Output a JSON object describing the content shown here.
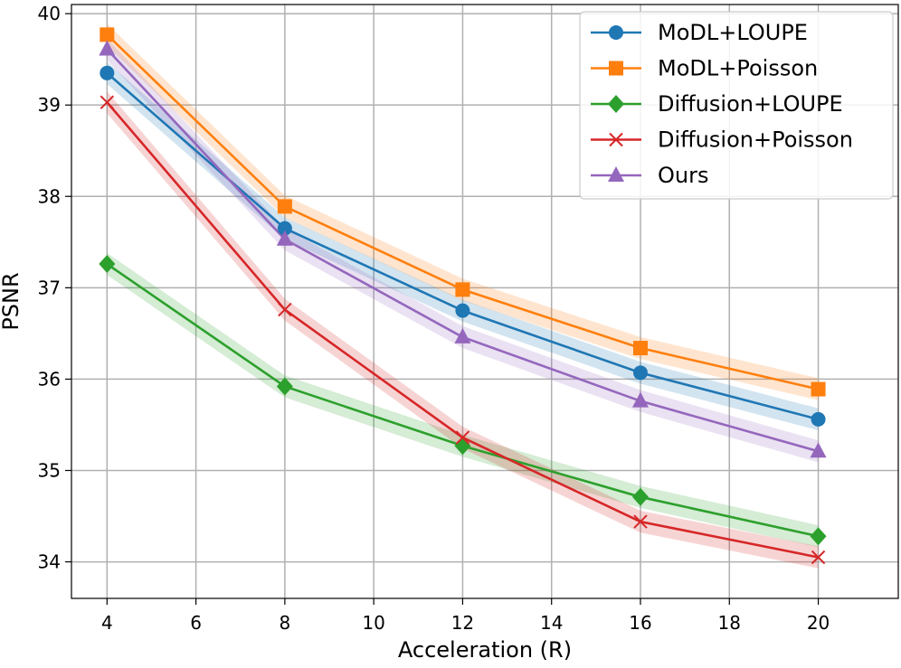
{
  "chart_data": {
    "type": "line",
    "title": "",
    "xlabel": "Acceleration (R)",
    "ylabel": "PSNR",
    "xlim": [
      3.2,
      21.8
    ],
    "ylim": [
      33.6,
      40.1
    ],
    "xticks": [
      4,
      6,
      8,
      10,
      12,
      14,
      16,
      18,
      20
    ],
    "yticks": [
      34,
      35,
      36,
      37,
      38,
      39,
      40
    ],
    "grid": true,
    "legend_position": "top-right",
    "x": [
      4,
      8,
      12,
      16,
      20
    ],
    "series": [
      {
        "name": "MoDL+LOUPE",
        "color": "#1f77b4",
        "marker": "circle",
        "values": [
          39.35,
          37.65,
          36.75,
          36.07,
          35.56
        ],
        "band": 0.12
      },
      {
        "name": "MoDL+Poisson",
        "color": "#ff7f0e",
        "marker": "square",
        "values": [
          39.77,
          37.89,
          36.98,
          36.34,
          35.89
        ],
        "band": 0.12
      },
      {
        "name": "Diffusion+LOUPE",
        "color": "#2ca02c",
        "marker": "diamond",
        "values": [
          37.26,
          35.92,
          35.27,
          34.71,
          34.28
        ],
        "band": 0.12
      },
      {
        "name": "Diffusion+Poisson",
        "color": "#d62728",
        "marker": "x",
        "values": [
          39.03,
          36.76,
          35.36,
          34.44,
          34.05
        ],
        "band": 0.12
      },
      {
        "name": "Ours",
        "color": "#9467bd",
        "marker": "triangle",
        "values": [
          39.61,
          37.53,
          36.46,
          35.76,
          35.21
        ],
        "band": 0.12
      }
    ]
  }
}
